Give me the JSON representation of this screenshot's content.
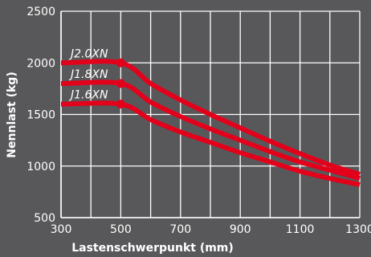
{
  "chart_data": {
    "type": "line",
    "xlabel": "Lastenschwerpunkt (mm)",
    "ylabel": "Nennlast (kg)",
    "xlim": [
      300,
      1300
    ],
    "ylim": [
      500,
      2500
    ],
    "xticks": [
      300,
      500,
      700,
      900,
      1100,
      1300
    ],
    "yticks": [
      500,
      1000,
      1500,
      2000,
      2500
    ],
    "x_gridlines": [
      300,
      400,
      500,
      600,
      700,
      800,
      900,
      1000,
      1100,
      1200,
      1300
    ],
    "grid": true,
    "colors": {
      "background": "#58585a",
      "grid": "#ffffff",
      "series": "#e3001b"
    },
    "series": [
      {
        "name": "J2.0XN",
        "points": [
          [
            300,
            2000
          ],
          [
            500,
            2000
          ],
          [
            600,
            1800
          ],
          [
            700,
            1640
          ],
          [
            800,
            1500
          ],
          [
            900,
            1370
          ],
          [
            1000,
            1240
          ],
          [
            1100,
            1120
          ],
          [
            1200,
            1010
          ],
          [
            1300,
            920
          ]
        ]
      },
      {
        "name": "J1.8XN",
        "points": [
          [
            300,
            1800
          ],
          [
            500,
            1800
          ],
          [
            600,
            1620
          ],
          [
            700,
            1480
          ],
          [
            800,
            1360
          ],
          [
            900,
            1250
          ],
          [
            1000,
            1140
          ],
          [
            1100,
            1040
          ],
          [
            1200,
            960
          ],
          [
            1300,
            880
          ]
        ]
      },
      {
        "name": "J1.6XN",
        "points": [
          [
            300,
            1600
          ],
          [
            500,
            1600
          ],
          [
            600,
            1450
          ],
          [
            700,
            1330
          ],
          [
            800,
            1230
          ],
          [
            900,
            1130
          ],
          [
            1000,
            1040
          ],
          [
            1100,
            950
          ],
          [
            1200,
            880
          ],
          [
            1300,
            820
          ]
        ]
      }
    ]
  }
}
